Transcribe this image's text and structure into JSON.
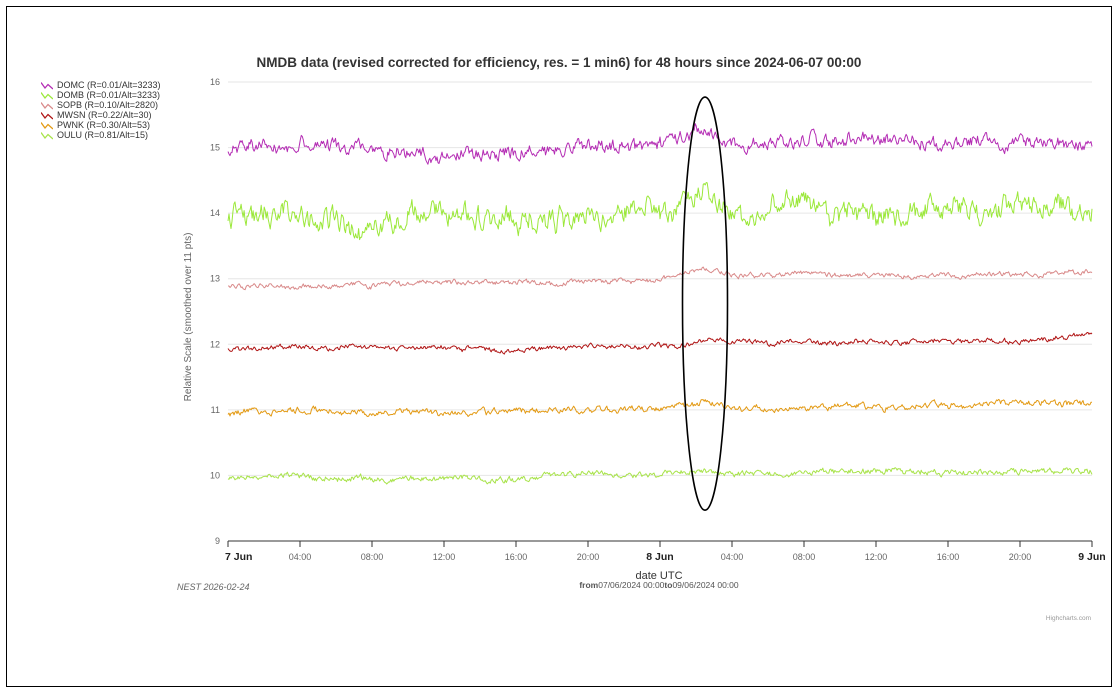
{
  "chart_data": {
    "type": "line",
    "title": "NMDB data (revised corrected for efficiency, res. = 1 min6) for 48 hours since 2024-06-07 00:00",
    "ylabel": "Relative Scale (smoothed over 11 pts)",
    "xlabel": "date UTC",
    "range_text": {
      "from_label": "from",
      "from_value": "07/06/2024 00:00",
      "to_label": "to",
      "to_value": "09/06/2024 00:00"
    },
    "ylim": [
      9,
      16
    ],
    "yticks": [
      "9",
      "10",
      "11",
      "12",
      "13",
      "14",
      "15",
      "16"
    ],
    "xticks": [
      {
        "label": "7 Jun",
        "hours": 0,
        "bold": true
      },
      {
        "label": "04:00",
        "hours": 4,
        "bold": false
      },
      {
        "label": "08:00",
        "hours": 8,
        "bold": false
      },
      {
        "label": "12:00",
        "hours": 12,
        "bold": false
      },
      {
        "label": "16:00",
        "hours": 16,
        "bold": false
      },
      {
        "label": "20:00",
        "hours": 20,
        "bold": false
      },
      {
        "label": "8 Jun",
        "hours": 24,
        "bold": true
      },
      {
        "label": "04:00",
        "hours": 28,
        "bold": false
      },
      {
        "label": "08:00",
        "hours": 32,
        "bold": false
      },
      {
        "label": "12:00",
        "hours": 36,
        "bold": false
      },
      {
        "label": "16:00",
        "hours": 40,
        "bold": false
      },
      {
        "label": "20:00",
        "hours": 44,
        "bold": false
      },
      {
        "label": "9 Jun",
        "hours": 48,
        "bold": true
      }
    ],
    "grid": true,
    "legend_position": "top-left",
    "series": [
      {
        "name": "DOMC (R=0.01/Alt=3233)",
        "color": "#b42db4",
        "x_hours": [
          0,
          4,
          8,
          12,
          16,
          20,
          24,
          26.5,
          28,
          32,
          36,
          40,
          44,
          48
        ],
        "values": [
          15.0,
          15.05,
          15.0,
          14.9,
          14.95,
          15.0,
          15.05,
          15.3,
          15.05,
          15.1,
          15.1,
          15.05,
          15.1,
          15.05
        ]
      },
      {
        "name": "DOMB (R=0.01/Alt=3233)",
        "color": "#9be83a",
        "x_hours": [
          0,
          4,
          8,
          12,
          16,
          20,
          24,
          26.5,
          28,
          32,
          36,
          40,
          44,
          48
        ],
        "values": [
          14.0,
          14.0,
          13.85,
          14.0,
          13.9,
          13.95,
          14.0,
          14.25,
          14.0,
          14.1,
          14.0,
          14.05,
          14.1,
          14.1
        ]
      },
      {
        "name": "SOPB (R=0.10/Alt=2820)",
        "color": "#d98a8a",
        "x_hours": [
          0,
          4,
          8,
          12,
          16,
          20,
          24,
          26.5,
          28,
          32,
          36,
          40,
          44,
          48
        ],
        "values": [
          12.9,
          12.88,
          12.9,
          12.95,
          12.95,
          12.95,
          13.0,
          13.15,
          13.05,
          13.08,
          13.05,
          13.05,
          13.05,
          13.1
        ]
      },
      {
        "name": "MWSN (R=0.22/Alt=30)",
        "color": "#b01515",
        "x_hours": [
          0,
          4,
          8,
          12,
          16,
          20,
          24,
          26.5,
          28,
          32,
          36,
          40,
          44,
          48
        ],
        "values": [
          11.95,
          11.95,
          11.95,
          11.95,
          11.9,
          11.95,
          11.95,
          12.05,
          12.05,
          12.05,
          12.05,
          12.05,
          12.05,
          12.15
        ]
      },
      {
        "name": "PWNK (R=0.30/Alt=53)",
        "color": "#e39a14",
        "x_hours": [
          0,
          4,
          8,
          12,
          16,
          20,
          24,
          26.5,
          28,
          32,
          36,
          40,
          44,
          48
        ],
        "values": [
          10.95,
          11.0,
          10.95,
          11.0,
          10.95,
          11.0,
          11.0,
          11.1,
          11.0,
          11.05,
          11.05,
          11.05,
          11.1,
          11.1
        ]
      },
      {
        "name": "OULU (R=0.81/Alt=15)",
        "color": "#a8e34a",
        "x_hours": [
          0,
          4,
          8,
          12,
          16,
          20,
          24,
          26.5,
          28,
          32,
          36,
          40,
          44,
          48
        ],
        "values": [
          9.95,
          9.97,
          9.95,
          9.95,
          9.95,
          10.0,
          10.0,
          10.1,
          10.0,
          10.05,
          10.05,
          10.05,
          10.05,
          10.05
        ]
      }
    ],
    "annotation": {
      "type": "ellipse",
      "center_hours": 26.5,
      "center_value": 12.62,
      "half_width_hours": 1.25,
      "half_height_value": 3.15
    }
  },
  "footer": {
    "note": "NEST 2026-02-24",
    "credit": "Highcharts.com"
  }
}
